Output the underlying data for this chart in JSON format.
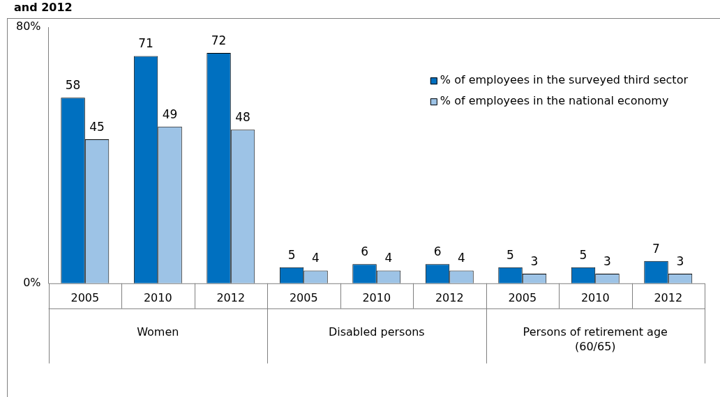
{
  "chart_data": {
    "type": "bar",
    "title": "and 2012",
    "categories": [
      "2005",
      "2010",
      "2012",
      "2005",
      "2010",
      "2012",
      "2005",
      "2010",
      "2012"
    ],
    "series": [
      {
        "name": "% of employees in the surveyed third sector",
        "color": "#0070c0",
        "values": [
          58,
          71,
          72,
          5,
          6,
          6,
          5,
          5,
          7
        ]
      },
      {
        "name": "% of employees in the national economy",
        "color": "#9dc3e6",
        "values": [
          45,
          49,
          48,
          4,
          4,
          4,
          3,
          3,
          3
        ]
      }
    ],
    "annotations": [
      "Women",
      "Disabled persons",
      "Persons of retirement age (60/65)"
    ],
    "ylim": [
      0,
      80
    ],
    "yticks": [
      {
        "value": 0,
        "label": "0%"
      },
      {
        "value": 80,
        "label": "80%"
      }
    ],
    "data_labels": true,
    "grid": false,
    "legend": "top right"
  }
}
